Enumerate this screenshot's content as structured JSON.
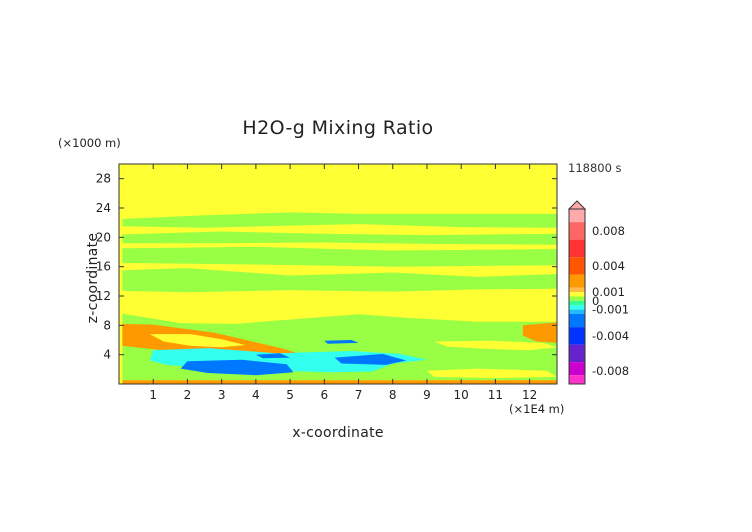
{
  "chart_data": {
    "type": "heatmap",
    "title": "H2O-g Mixing Ratio",
    "xlabel": "x-coordinate",
    "ylabel": "z-coordinate",
    "x_scale_note": "(×1E4 m)",
    "y_scale_note": "(×1000 m)",
    "time_label": "118800 s",
    "xlim": [
      0,
      12.8
    ],
    "ylim": [
      0,
      30
    ],
    "x_ticks": [
      1,
      2,
      3,
      4,
      5,
      6,
      7,
      8,
      9,
      10,
      11,
      12
    ],
    "x_tick_labels": [
      "1",
      "2",
      "3",
      "4",
      "5",
      "6",
      "7",
      "8",
      "9",
      "10",
      "11",
      "12"
    ],
    "y_ticks": [
      4,
      8,
      12,
      16,
      20,
      24,
      28
    ],
    "y_tick_labels": [
      "4",
      "8",
      "12",
      "16",
      "20",
      "24",
      "28"
    ],
    "background_value": 0.0005,
    "colorbar": {
      "range": [
        -0.0095,
        0.0105
      ],
      "labels": [
        {
          "value": 0.008,
          "text": "0.008"
        },
        {
          "value": 0.004,
          "text": "0.004"
        },
        {
          "value": 0.001,
          "text": "0.001"
        },
        {
          "value": 0.0,
          "text": "0"
        },
        {
          "value": -0.001,
          "text": "-0.001"
        },
        {
          "value": -0.004,
          "text": "-0.004"
        },
        {
          "value": -0.008,
          "text": "-0.008"
        }
      ],
      "bins": [
        {
          "from": 0.009,
          "to": 0.0105,
          "color": "#ffaaaa"
        },
        {
          "from": 0.007,
          "to": 0.009,
          "color": "#ff6666"
        },
        {
          "from": 0.005,
          "to": 0.007,
          "color": "#ff3333"
        },
        {
          "from": 0.003,
          "to": 0.005,
          "color": "#ff5500"
        },
        {
          "from": 0.0015,
          "to": 0.003,
          "color": "#ff9900"
        },
        {
          "from": 0.001,
          "to": 0.0015,
          "color": "#ffbb44"
        },
        {
          "from": 0.0005,
          "to": 0.001,
          "color": "#ffff33"
        },
        {
          "from": 0.0,
          "to": 0.0005,
          "color": "#99ff44"
        },
        {
          "from": -0.0005,
          "to": 0.0,
          "color": "#33ff99"
        },
        {
          "from": -0.001,
          "to": -0.0005,
          "color": "#33ffee"
        },
        {
          "from": -0.0015,
          "to": -0.001,
          "color": "#22bbff"
        },
        {
          "from": -0.003,
          "to": -0.0015,
          "color": "#0077ff"
        },
        {
          "from": -0.005,
          "to": -0.003,
          "color": "#0033ff"
        },
        {
          "from": -0.007,
          "to": -0.005,
          "color": "#6622cc"
        },
        {
          "from": -0.0085,
          "to": -0.007,
          "color": "#cc00cc"
        },
        {
          "from": -0.0095,
          "to": -0.0085,
          "color": "#ff33cc"
        }
      ]
    },
    "regions": [
      {
        "name": "upper-green-band-1",
        "value": 0.00025,
        "points": [
          [
            0.1,
            22.5
          ],
          [
            2.5,
            23.0
          ],
          [
            5.0,
            23.4
          ],
          [
            7.0,
            23.2
          ],
          [
            10.0,
            23.2
          ],
          [
            12.8,
            23.2
          ],
          [
            12.8,
            21.3
          ],
          [
            10.0,
            21.4
          ],
          [
            7.0,
            21.8
          ],
          [
            5.0,
            21.6
          ],
          [
            2.5,
            21.3
          ],
          [
            0.1,
            21.5
          ]
        ]
      },
      {
        "name": "upper-green-band-2",
        "value": 0.00025,
        "points": [
          [
            0.1,
            20.4
          ],
          [
            3.0,
            20.8
          ],
          [
            6.0,
            20.5
          ],
          [
            9.0,
            20.3
          ],
          [
            12.8,
            20.5
          ],
          [
            12.8,
            19.0
          ],
          [
            9.0,
            19.1
          ],
          [
            6.0,
            19.3
          ],
          [
            3.0,
            19.2
          ],
          [
            0.1,
            19.2
          ]
        ]
      },
      {
        "name": "upper-green-band-3",
        "value": 0.00025,
        "points": [
          [
            0.1,
            18.5
          ],
          [
            4.0,
            18.7
          ],
          [
            8.0,
            18.2
          ],
          [
            12.8,
            18.4
          ],
          [
            12.8,
            16.2
          ],
          [
            8.0,
            16.0
          ],
          [
            4.0,
            16.3
          ],
          [
            0.1,
            16.5
          ]
        ]
      },
      {
        "name": "middle-green-band",
        "value": 0.00025,
        "points": [
          [
            0.1,
            15.5
          ],
          [
            2.0,
            15.8
          ],
          [
            5.0,
            14.8
          ],
          [
            8.0,
            15.2
          ],
          [
            10.5,
            14.6
          ],
          [
            12.8,
            15.0
          ],
          [
            12.8,
            13.0
          ],
          [
            10.5,
            12.9
          ],
          [
            8.0,
            12.6
          ],
          [
            5.0,
            12.8
          ],
          [
            2.0,
            12.5
          ],
          [
            0.1,
            12.7
          ]
        ]
      },
      {
        "name": "lower-green-zone",
        "value": 0.00025,
        "points": [
          [
            0.1,
            9.6
          ],
          [
            1.8,
            8.3
          ],
          [
            3.4,
            8.2
          ],
          [
            5.0,
            8.8
          ],
          [
            7.0,
            9.5
          ],
          [
            8.5,
            9.0
          ],
          [
            10.5,
            8.5
          ],
          [
            12.8,
            8.5
          ],
          [
            12.8,
            0.5
          ],
          [
            0.1,
            0.5
          ]
        ]
      },
      {
        "name": "left-low-orange-plume",
        "value": 0.0022,
        "points": [
          [
            0.1,
            8.2
          ],
          [
            1.0,
            8.1
          ],
          [
            1.8,
            7.6
          ],
          [
            2.8,
            7.0
          ],
          [
            3.8,
            5.9
          ],
          [
            4.8,
            4.8
          ],
          [
            5.5,
            3.8
          ],
          [
            4.6,
            3.3
          ],
          [
            3.2,
            3.7
          ],
          [
            2.0,
            4.2
          ],
          [
            0.9,
            4.8
          ],
          [
            0.1,
            5.2
          ]
        ]
      },
      {
        "name": "left-low-inner-yellow",
        "value": 0.00075,
        "points": [
          [
            0.9,
            6.8
          ],
          [
            2.1,
            6.8
          ],
          [
            3.0,
            6.1
          ],
          [
            3.7,
            5.3
          ],
          [
            3.0,
            5.0
          ],
          [
            2.1,
            5.2
          ],
          [
            1.3,
            5.8
          ]
        ]
      },
      {
        "name": "right-orange-patch",
        "value": 0.0022,
        "points": [
          [
            11.8,
            8.0
          ],
          [
            12.8,
            8.4
          ],
          [
            12.8,
            5.6
          ],
          [
            12.2,
            5.8
          ],
          [
            11.8,
            6.6
          ]
        ]
      },
      {
        "name": "right-mid-yellow-patch",
        "value": 0.00075,
        "points": [
          [
            9.2,
            5.8
          ],
          [
            10.8,
            5.9
          ],
          [
            12.4,
            5.6
          ],
          [
            12.8,
            5.0
          ],
          [
            12.0,
            4.6
          ],
          [
            10.7,
            4.8
          ],
          [
            9.6,
            5.1
          ]
        ]
      },
      {
        "name": "cyan-lower-layer",
        "value": -0.0007,
        "points": [
          [
            1.0,
            4.6
          ],
          [
            2.6,
            4.9
          ],
          [
            4.6,
            4.2
          ],
          [
            6.8,
            4.5
          ],
          [
            8.2,
            4.1
          ],
          [
            9.0,
            3.3
          ],
          [
            8.0,
            2.8
          ],
          [
            7.4,
            1.7
          ],
          [
            6.2,
            1.6
          ],
          [
            4.6,
            1.8
          ],
          [
            2.8,
            2.1
          ],
          [
            1.4,
            2.6
          ],
          [
            0.9,
            3.2
          ]
        ]
      },
      {
        "name": "blue-deep-core-left",
        "value": -0.0025,
        "points": [
          [
            2.0,
            3.1
          ],
          [
            3.6,
            3.3
          ],
          [
            4.9,
            2.7
          ],
          [
            5.1,
            1.6
          ],
          [
            4.0,
            1.2
          ],
          [
            2.6,
            1.5
          ],
          [
            1.8,
            2.1
          ]
        ]
      },
      {
        "name": "blue-deep-core-right",
        "value": -0.0025,
        "points": [
          [
            6.3,
            3.6
          ],
          [
            7.7,
            4.1
          ],
          [
            8.4,
            3.2
          ],
          [
            7.8,
            2.6
          ],
          [
            6.5,
            2.8
          ]
        ]
      },
      {
        "name": "blue-core-small-left",
        "value": -0.0025,
        "points": [
          [
            4.0,
            4.0
          ],
          [
            4.7,
            4.2
          ],
          [
            5.0,
            3.6
          ],
          [
            4.2,
            3.5
          ]
        ]
      },
      {
        "name": "blue-core-small-right",
        "value": -0.0025,
        "points": [
          [
            6.0,
            5.9
          ],
          [
            6.8,
            6.0
          ],
          [
            7.0,
            5.6
          ],
          [
            6.1,
            5.5
          ]
        ]
      },
      {
        "name": "ground-orange-strip",
        "value": 0.0022,
        "points": [
          [
            0.1,
            0.5
          ],
          [
            12.8,
            0.5
          ],
          [
            12.8,
            0.0
          ],
          [
            0.1,
            0.0
          ]
        ]
      },
      {
        "name": "right-low-yellow-strip",
        "value": 0.00075,
        "points": [
          [
            9.0,
            1.8
          ],
          [
            10.5,
            2.1
          ],
          [
            12.5,
            1.8
          ],
          [
            12.8,
            1.0
          ],
          [
            11.0,
            0.8
          ],
          [
            9.2,
            1.0
          ]
        ]
      }
    ]
  }
}
